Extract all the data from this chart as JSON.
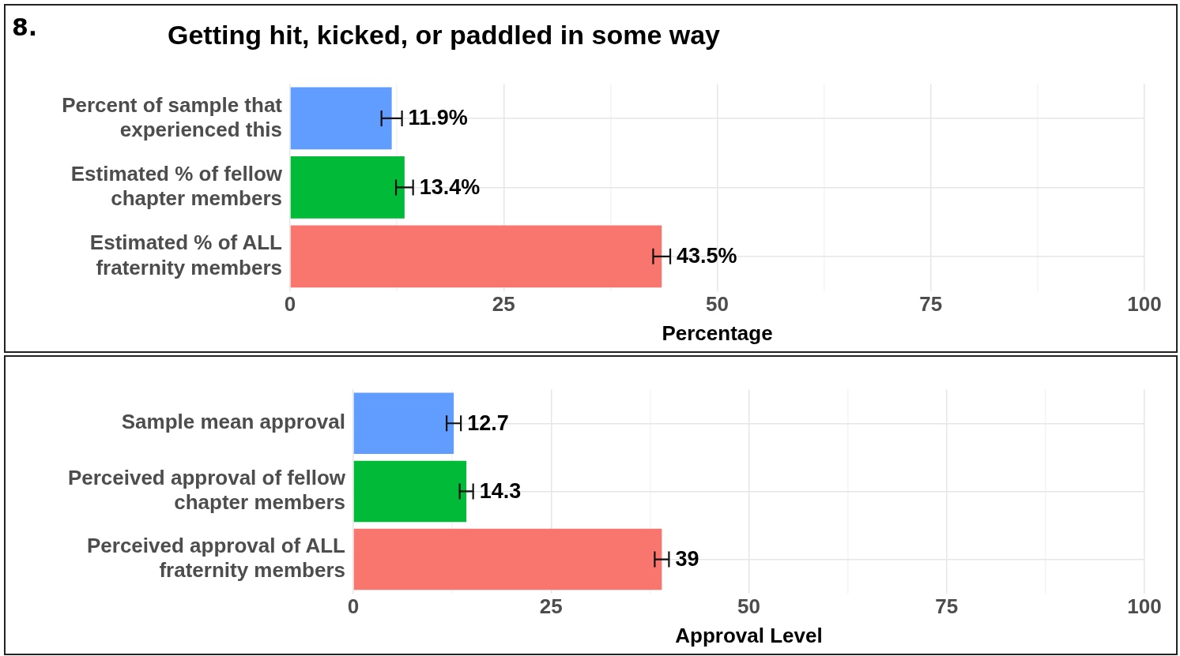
{
  "chart_data": [
    {
      "type": "bar",
      "orientation": "horizontal",
      "title": "Getting hit, kicked, or paddled in some way",
      "annotations": [
        "8."
      ],
      "xlabel": "Percentage",
      "categories": [
        "Percent of sample that experienced this",
        "Estimated % of fellow chapter members",
        "Estimated % of ALL fraternity members"
      ],
      "values": [
        11.9,
        13.4,
        43.5
      ],
      "colors": [
        "#619cff",
        "#00ba38",
        "#f8766d"
      ],
      "errors": [
        1.2,
        1.0,
        1.0
      ],
      "value_labels": [
        "11.9%",
        "13.4%",
        "43.5%"
      ],
      "xlim": [
        0,
        100
      ],
      "xticks": [
        0,
        {
          "value": 12.5,
          "label": null
        },
        25,
        {
          "value": 37.5,
          "label": null
        },
        50,
        {
          "value": 62.5,
          "label": null
        },
        75,
        {
          "value": 87.5,
          "label": null
        },
        100
      ],
      "grid": true
    },
    {
      "type": "bar",
      "orientation": "horizontal",
      "xlabel": "Approval Level",
      "categories": [
        "Sample mean approval",
        "Perceived approval of fellow chapter members",
        "Perceived approval of ALL fraternity members"
      ],
      "values": [
        12.7,
        14.3,
        39
      ],
      "colors": [
        "#619cff",
        "#00ba38",
        "#f8766d"
      ],
      "errors": [
        0.9,
        0.85,
        0.9
      ],
      "data_labels": true,
      "xlim": [
        0,
        100
      ],
      "xticks": [
        0,
        {
          "value": 12.5,
          "label": null
        },
        25,
        {
          "value": 37.5,
          "label": null
        },
        50,
        {
          "value": 62.5,
          "label": null
        },
        75,
        {
          "value": 87.5,
          "label": null
        },
        100
      ],
      "grid": true
    }
  ]
}
